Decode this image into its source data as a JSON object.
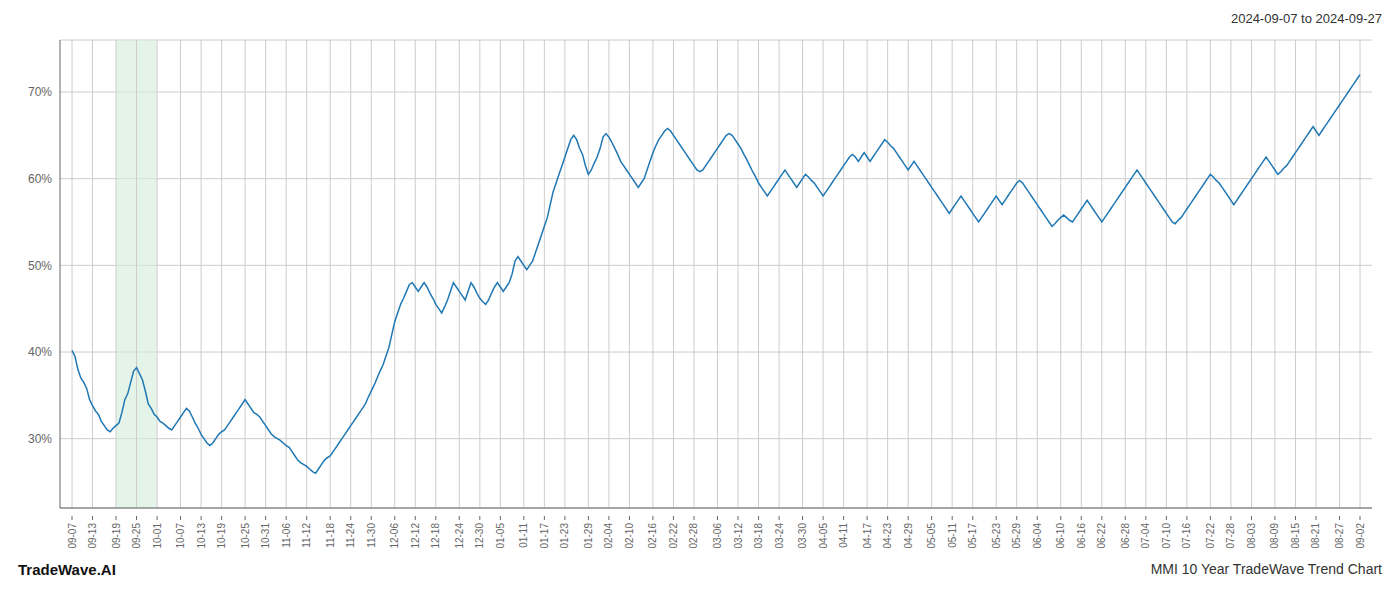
{
  "chart_data": {
    "type": "line",
    "title": "2024-09-07 to 2024-09-27",
    "annotations": [
      "TradeWave.AI",
      "MMI 10 Year TradeWave Trend Chart"
    ],
    "color": "#1f77b4",
    "grid": true,
    "ylim": [
      22,
      76
    ],
    "yticks": [
      {
        "value": 30,
        "label": "30%"
      },
      {
        "value": 40,
        "label": "40%"
      },
      {
        "value": 50,
        "label": "50%"
      },
      {
        "value": 60,
        "label": "60%"
      },
      {
        "value": 70,
        "label": "70%"
      }
    ],
    "shaded_region": {
      "from": "09-19",
      "to": "10-01",
      "color": "#d4edda"
    },
    "categories": [
      "09-07",
      null,
      null,
      null,
      null,
      null,
      null,
      "09-13",
      null,
      null,
      null,
      null,
      null,
      null,
      null,
      "09-19",
      null,
      null,
      null,
      null,
      null,
      null,
      "09-25",
      null,
      null,
      null,
      null,
      null,
      null,
      "10-01",
      null,
      null,
      null,
      null,
      null,
      null,
      null,
      "10-07",
      null,
      null,
      null,
      null,
      null,
      null,
      "10-13",
      null,
      null,
      null,
      null,
      null,
      null,
      "10-19",
      null,
      null,
      null,
      null,
      null,
      null,
      null,
      "10-25",
      null,
      null,
      null,
      null,
      null,
      null,
      "10-31",
      null,
      null,
      null,
      null,
      null,
      null,
      "11-06",
      null,
      null,
      null,
      null,
      null,
      null,
      "11-12",
      null,
      null,
      null,
      null,
      null,
      null,
      null,
      "11-18",
      null,
      null,
      null,
      null,
      null,
      null,
      "11-24",
      null,
      null,
      null,
      null,
      null,
      null,
      "11-30",
      null,
      null,
      null,
      null,
      null,
      null,
      null,
      "12-06",
      null,
      null,
      null,
      null,
      null,
      null,
      "12-12",
      null,
      null,
      null,
      null,
      null,
      null,
      "12-18",
      null,
      null,
      null,
      null,
      null,
      null,
      null,
      "12-24",
      null,
      null,
      null,
      null,
      null,
      null,
      "12-30",
      null,
      null,
      null,
      null,
      null,
      null,
      "01-05",
      null,
      null,
      null,
      null,
      null,
      null,
      null,
      "01-11",
      null,
      null,
      null,
      null,
      null,
      null,
      "01-17",
      null,
      null,
      null,
      null,
      null,
      null,
      "01-23",
      null,
      null,
      null,
      null,
      null,
      null,
      null,
      "01-29",
      null,
      null,
      null,
      null,
      null,
      null,
      "02-04",
      null,
      null,
      null,
      null,
      null,
      null,
      "02-10",
      null,
      null,
      null,
      null,
      null,
      null,
      null,
      "02-16",
      null,
      null,
      null,
      null,
      null,
      null,
      "02-22",
      null,
      null,
      null,
      null,
      null,
      null,
      "02-28",
      null,
      null,
      null,
      null,
      null,
      null,
      null,
      "03-06",
      null,
      null,
      null,
      null,
      null,
      null,
      "03-12",
      null,
      null,
      null,
      null,
      null,
      null,
      "03-18",
      null,
      null,
      null,
      null,
      null,
      null,
      "03-24",
      null,
      null,
      null,
      null,
      null,
      null,
      null,
      "03-30",
      null,
      null,
      null,
      null,
      null,
      null,
      "04-05",
      null,
      null,
      null,
      null,
      null,
      null,
      "04-11",
      null,
      null,
      null,
      null,
      null,
      null,
      null,
      "04-17",
      null,
      null,
      null,
      null,
      null,
      null,
      "04-23",
      null,
      null,
      null,
      null,
      null,
      null,
      "04-29",
      null,
      null,
      null,
      null,
      null,
      null,
      null,
      "05-05",
      null,
      null,
      null,
      null,
      null,
      null,
      "05-11",
      null,
      null,
      null,
      null,
      null,
      null,
      "05-17",
      null,
      null,
      null,
      null,
      null,
      null,
      null,
      "05-23",
      null,
      null,
      null,
      null,
      null,
      null,
      "05-29",
      null,
      null,
      null,
      null,
      null,
      null,
      "06-04",
      null,
      null,
      null,
      null,
      null,
      null,
      null,
      "06-10",
      null,
      null,
      null,
      null,
      null,
      null,
      "06-16",
      null,
      null,
      null,
      null,
      null,
      null,
      "06-22",
      null,
      null,
      null,
      null,
      null,
      null,
      null,
      "06-28",
      null,
      null,
      null,
      null,
      null,
      null,
      "07-04",
      null,
      null,
      null,
      null,
      null,
      null,
      "07-10",
      null,
      null,
      null,
      null,
      null,
      null,
      "07-16",
      null,
      null,
      null,
      null,
      null,
      null,
      null,
      "07-22",
      null,
      null,
      null,
      null,
      null,
      null,
      "07-28",
      null,
      null,
      null,
      null,
      null,
      null,
      "08-03",
      null,
      null,
      null,
      null,
      null,
      null,
      null,
      "08-09",
      null,
      null,
      null,
      null,
      null,
      null,
      "08-15",
      null,
      null,
      null,
      null,
      null,
      null,
      "08-21",
      null,
      null,
      null,
      null,
      null,
      null,
      null,
      "08-27",
      null,
      null,
      null,
      null,
      null,
      null,
      "09-02"
    ],
    "values": [
      40.2,
      39.5,
      38.0,
      37.0,
      36.5,
      35.8,
      34.5,
      33.8,
      33.2,
      32.8,
      32.0,
      31.5,
      31.0,
      30.8,
      31.2,
      31.5,
      31.8,
      33.0,
      34.5,
      35.2,
      36.5,
      37.8,
      38.2,
      37.5,
      36.8,
      35.5,
      34.0,
      33.5,
      32.8,
      32.5,
      32.0,
      31.8,
      31.5,
      31.2,
      31.0,
      31.5,
      32.0,
      32.5,
      33.0,
      33.5,
      33.2,
      32.5,
      31.8,
      31.2,
      30.5,
      30.0,
      29.5,
      29.2,
      29.5,
      30.0,
      30.5,
      30.8,
      31.0,
      31.5,
      32.0,
      32.5,
      33.0,
      33.5,
      34.0,
      34.5,
      34.0,
      33.5,
      33.0,
      32.8,
      32.5,
      32.0,
      31.5,
      31.0,
      30.5,
      30.2,
      30.0,
      29.8,
      29.5,
      29.2,
      29.0,
      28.5,
      28.0,
      27.5,
      27.2,
      27.0,
      26.8,
      26.5,
      26.2,
      26.0,
      26.5,
      27.0,
      27.5,
      27.8,
      28.0,
      28.5,
      29.0,
      29.5,
      30.0,
      30.5,
      31.0,
      31.5,
      32.0,
      32.5,
      33.0,
      33.5,
      34.0,
      34.8,
      35.5,
      36.2,
      37.0,
      37.8,
      38.5,
      39.5,
      40.5,
      42.0,
      43.5,
      44.5,
      45.5,
      46.2,
      47.0,
      47.8,
      48.0,
      47.5,
      47.0,
      47.5,
      48.0,
      47.5,
      46.8,
      46.2,
      45.5,
      45.0,
      44.5,
      45.2,
      46.0,
      47.0,
      48.0,
      47.5,
      47.0,
      46.5,
      46.0,
      47.0,
      48.0,
      47.5,
      46.8,
      46.2,
      45.8,
      45.5,
      46.0,
      46.8,
      47.5,
      48.0,
      47.5,
      47.0,
      47.5,
      48.0,
      49.0,
      50.5,
      51.0,
      50.5,
      50.0,
      49.5,
      50.0,
      50.5,
      51.5,
      52.5,
      53.5,
      54.5,
      55.5,
      57.0,
      58.5,
      59.5,
      60.5,
      61.5,
      62.5,
      63.5,
      64.5,
      65.0,
      64.5,
      63.5,
      62.8,
      61.5,
      60.5,
      61.0,
      61.8,
      62.5,
      63.5,
      64.8,
      65.2,
      64.8,
      64.2,
      63.5,
      62.8,
      62.0,
      61.5,
      61.0,
      60.5,
      60.0,
      59.5,
      59.0,
      59.5,
      60.0,
      61.0,
      62.0,
      63.0,
      63.8,
      64.5,
      65.0,
      65.5,
      65.8,
      65.5,
      65.0,
      64.5,
      64.0,
      63.5,
      63.0,
      62.5,
      62.0,
      61.5,
      61.0,
      60.8,
      61.0,
      61.5,
      62.0,
      62.5,
      63.0,
      63.5,
      64.0,
      64.5,
      65.0,
      65.2,
      65.0,
      64.5,
      64.0,
      63.5,
      62.8,
      62.2,
      61.5,
      60.8,
      60.2,
      59.5,
      59.0,
      58.5,
      58.0,
      58.5,
      59.0,
      59.5,
      60.0,
      60.5,
      61.0,
      60.5,
      60.0,
      59.5,
      59.0,
      59.5,
      60.0,
      60.5,
      60.2,
      59.8,
      59.5,
      59.0,
      58.5,
      58.0,
      58.5,
      59.0,
      59.5,
      60.0,
      60.5,
      61.0,
      61.5,
      62.0,
      62.5,
      62.8,
      62.5,
      62.0,
      62.5,
      63.0,
      62.5,
      62.0,
      62.5,
      63.0,
      63.5,
      64.0,
      64.5,
      64.2,
      63.8,
      63.5,
      63.0,
      62.5,
      62.0,
      61.5,
      61.0,
      61.5,
      62.0,
      61.5,
      61.0,
      60.5,
      60.0,
      59.5,
      59.0,
      58.5,
      58.0,
      57.5,
      57.0,
      56.5,
      56.0,
      56.5,
      57.0,
      57.5,
      58.0,
      57.5,
      57.0,
      56.5,
      56.0,
      55.5,
      55.0,
      55.5,
      56.0,
      56.5,
      57.0,
      57.5,
      58.0,
      57.5,
      57.0,
      57.5,
      58.0,
      58.5,
      59.0,
      59.5,
      59.8,
      59.5,
      59.0,
      58.5,
      58.0,
      57.5,
      57.0,
      56.5,
      56.0,
      55.5,
      55.0,
      54.5,
      54.8,
      55.2,
      55.5,
      55.8,
      55.5,
      55.2,
      55.0,
      55.5,
      56.0,
      56.5,
      57.0,
      57.5,
      57.0,
      56.5,
      56.0,
      55.5,
      55.0,
      55.5,
      56.0,
      56.5,
      57.0,
      57.5,
      58.0,
      58.5,
      59.0,
      59.5,
      60.0,
      60.5,
      61.0,
      60.5,
      60.0,
      59.5,
      59.0,
      58.5,
      58.0,
      57.5,
      57.0,
      56.5,
      56.0,
      55.5,
      55.0,
      54.8,
      55.2,
      55.5,
      56.0,
      56.5,
      57.0,
      57.5,
      58.0,
      58.5,
      59.0,
      59.5,
      60.0,
      60.5,
      60.2,
      59.8,
      59.5,
      59.0,
      58.5,
      58.0,
      57.5,
      57.0,
      57.5,
      58.0,
      58.5,
      59.0,
      59.5,
      60.0,
      60.5,
      61.0,
      61.5,
      62.0,
      62.5,
      62.0,
      61.5,
      61.0,
      60.5,
      60.8,
      61.2,
      61.5,
      62.0,
      62.5,
      63.0,
      63.5,
      64.0,
      64.5,
      65.0,
      65.5,
      66.0,
      65.5,
      65.0,
      65.5,
      66.0,
      66.5,
      67.0,
      67.5,
      68.0,
      68.5,
      69.0,
      69.5,
      70.0,
      70.5,
      71.0,
      71.5,
      72.0
    ]
  }
}
